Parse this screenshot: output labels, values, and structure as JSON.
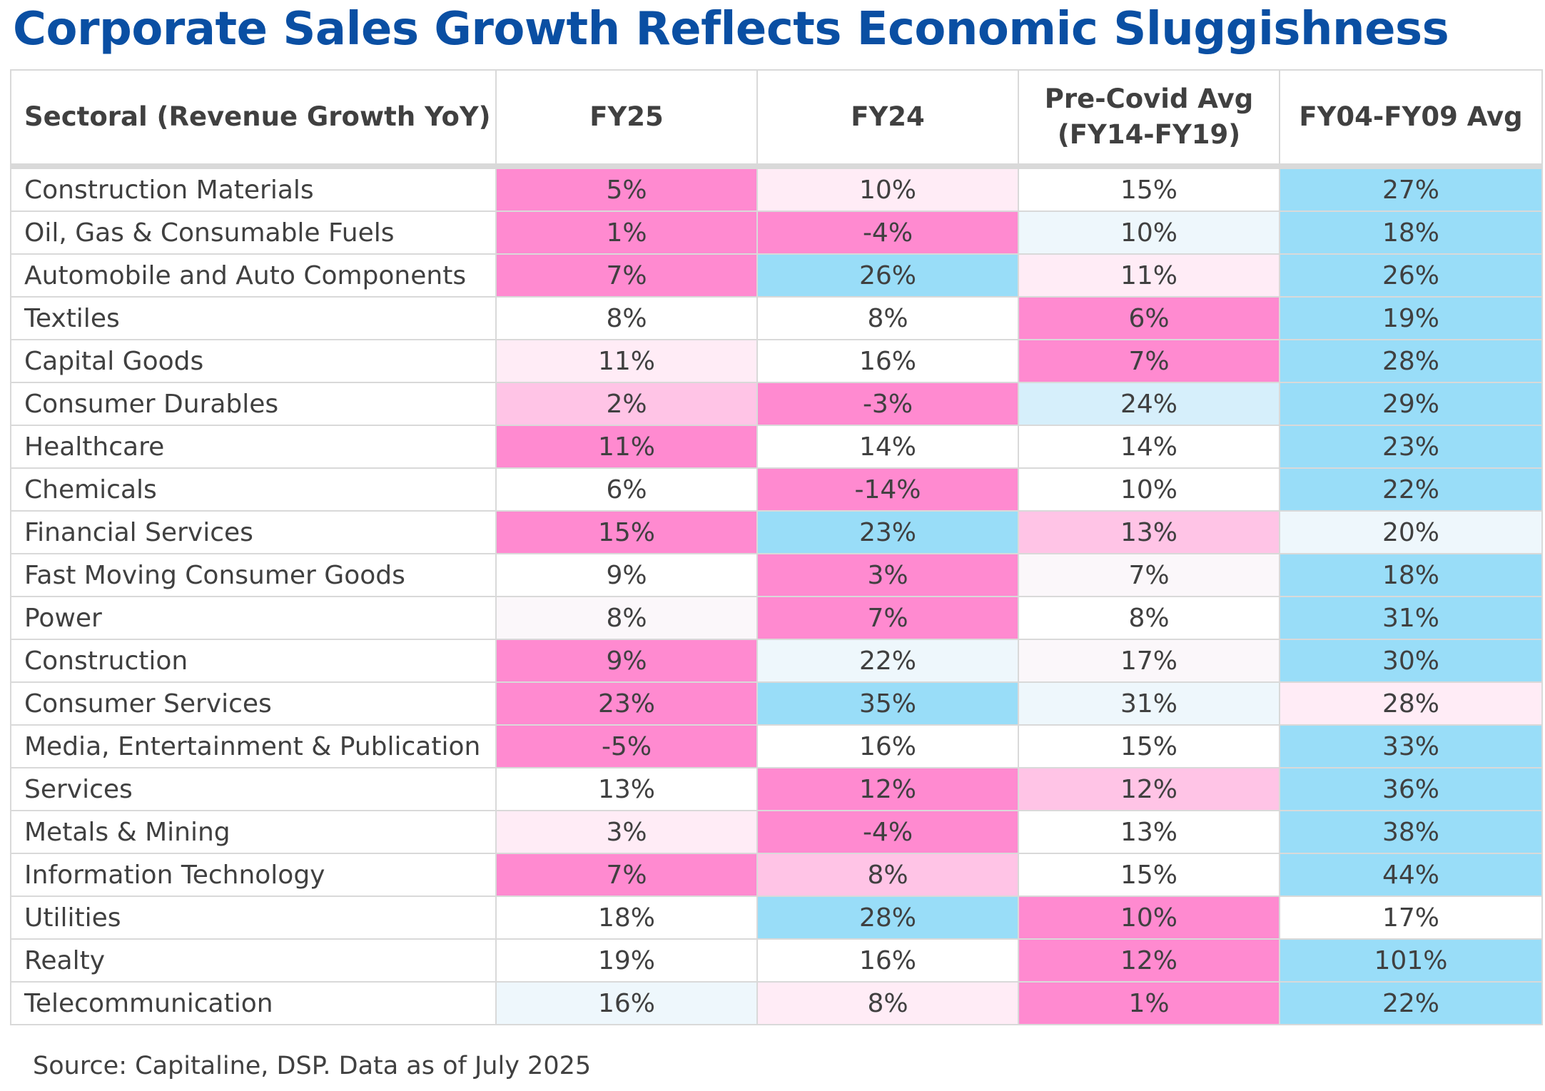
{
  "title": "Corporate Sales Growth Reflects Economic Sluggishness",
  "source": "Source: Capitaline, DSP. Data as of July 2025",
  "colors": {
    "title": "#0a4fa3",
    "low_scale": [
      "#ff8ad0",
      "#ffc4e6",
      "#ffecf6",
      "#fbf7fa"
    ],
    "high_scale": [
      "#99ddf8",
      "#d6effb",
      "#eef7fc"
    ],
    "neutral": "#ffffff"
  },
  "chart_data": {
    "type": "table",
    "columns": [
      "Sectoral (Revenue Growth YoY)",
      "FY25",
      "FY24",
      "Pre-Covid Avg\n(FY14-FY19)",
      "FY04-FY09 Avg"
    ],
    "rows": [
      {
        "sector": "Construction Materials",
        "values": [
          "5%",
          "10%",
          "15%",
          "27%"
        ],
        "shades": [
          "L1",
          "L3",
          "N",
          "H1"
        ]
      },
      {
        "sector": "Oil, Gas & Consumable Fuels",
        "values": [
          "1%",
          "-4%",
          "10%",
          "18%"
        ],
        "shades": [
          "L1",
          "L1",
          "H3",
          "H1"
        ]
      },
      {
        "sector": "Automobile and Auto Components",
        "values": [
          "7%",
          "26%",
          "11%",
          "26%"
        ],
        "shades": [
          "L1",
          "H1",
          "L3",
          "H1"
        ]
      },
      {
        "sector": "Textiles",
        "values": [
          "8%",
          "8%",
          "6%",
          "19%"
        ],
        "shades": [
          "N",
          "N",
          "L1",
          "H1"
        ]
      },
      {
        "sector": "Capital Goods",
        "values": [
          "11%",
          "16%",
          "7%",
          "28%"
        ],
        "shades": [
          "L3",
          "N",
          "L1",
          "H1"
        ]
      },
      {
        "sector": "Consumer Durables",
        "values": [
          "2%",
          "-3%",
          "24%",
          "29%"
        ],
        "shades": [
          "L2",
          "L1",
          "H2",
          "H1"
        ]
      },
      {
        "sector": "Healthcare",
        "values": [
          "11%",
          "14%",
          "14%",
          "23%"
        ],
        "shades": [
          "L1",
          "N",
          "N",
          "H1"
        ]
      },
      {
        "sector": "Chemicals",
        "values": [
          "6%",
          "-14%",
          "10%",
          "22%"
        ],
        "shades": [
          "N",
          "L1",
          "N",
          "H1"
        ]
      },
      {
        "sector": "Financial Services",
        "values": [
          "15%",
          "23%",
          "13%",
          "20%"
        ],
        "shades": [
          "L1",
          "H1",
          "L2",
          "H3"
        ]
      },
      {
        "sector": "Fast Moving Consumer Goods",
        "values": [
          "9%",
          "3%",
          "7%",
          "18%"
        ],
        "shades": [
          "N",
          "L1",
          "L4",
          "H1"
        ]
      },
      {
        "sector": "Power",
        "values": [
          "8%",
          "7%",
          "8%",
          "31%"
        ],
        "shades": [
          "L4",
          "L1",
          "N",
          "H1"
        ]
      },
      {
        "sector": "Construction",
        "values": [
          "9%",
          "22%",
          "17%",
          "30%"
        ],
        "shades": [
          "L1",
          "H3",
          "L4",
          "H1"
        ]
      },
      {
        "sector": "Consumer Services",
        "values": [
          "23%",
          "35%",
          "31%",
          "28%"
        ],
        "shades": [
          "L1",
          "H1",
          "H3",
          "L3"
        ]
      },
      {
        "sector": "Media, Entertainment & Publication",
        "values": [
          "-5%",
          "16%",
          "15%",
          "33%"
        ],
        "shades": [
          "L1",
          "N",
          "N",
          "H1"
        ]
      },
      {
        "sector": "Services",
        "values": [
          "13%",
          "12%",
          "12%",
          "36%"
        ],
        "shades": [
          "N",
          "L1",
          "L2",
          "H1"
        ]
      },
      {
        "sector": "Metals & Mining",
        "values": [
          "3%",
          "-4%",
          "13%",
          "38%"
        ],
        "shades": [
          "L3",
          "L1",
          "N",
          "H1"
        ]
      },
      {
        "sector": "Information Technology",
        "values": [
          "7%",
          "8%",
          "15%",
          "44%"
        ],
        "shades": [
          "L1",
          "L2",
          "N",
          "H1"
        ]
      },
      {
        "sector": "Utilities",
        "values": [
          "18%",
          "28%",
          "10%",
          "17%"
        ],
        "shades": [
          "N",
          "H1",
          "L1",
          "N"
        ]
      },
      {
        "sector": "Realty",
        "values": [
          "19%",
          "16%",
          "12%",
          "101%"
        ],
        "shades": [
          "N",
          "N",
          "L1",
          "H1"
        ]
      },
      {
        "sector": "Telecommunication",
        "values": [
          "16%",
          "8%",
          "1%",
          "22%"
        ],
        "shades": [
          "H3",
          "L3",
          "L1",
          "H1"
        ]
      }
    ]
  }
}
